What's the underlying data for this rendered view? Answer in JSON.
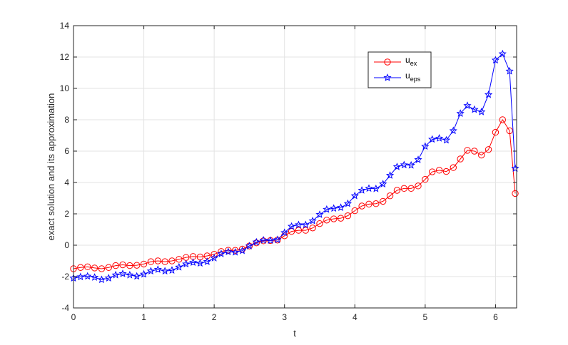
{
  "chart_data": {
    "type": "line",
    "xlabel": "t",
    "ylabel": "exact solution and its approximation",
    "xlim": [
      0,
      6.3
    ],
    "ylim": [
      -4,
      14
    ],
    "xticks": [
      "0",
      "1",
      "2",
      "3",
      "4",
      "5",
      "6"
    ],
    "yticks": [
      "-4",
      "-2",
      "0",
      "2",
      "4",
      "6",
      "8",
      "10",
      "12",
      "14"
    ],
    "grid": true,
    "legend_placement": "top-right",
    "x": [
      0.0,
      0.1,
      0.2,
      0.3,
      0.4,
      0.5,
      0.6,
      0.7,
      0.8,
      0.9,
      1.0,
      1.1,
      1.2,
      1.3,
      1.4,
      1.5,
      1.6,
      1.7,
      1.8,
      1.9,
      2.0,
      2.1,
      2.2,
      2.3,
      2.4,
      2.5,
      2.6,
      2.7,
      2.8,
      2.9,
      3.0,
      3.1,
      3.2,
      3.3,
      3.4,
      3.5,
      3.6,
      3.7,
      3.8,
      3.9,
      4.0,
      4.1,
      4.2,
      4.3,
      4.4,
      4.5,
      4.6,
      4.7,
      4.8,
      4.9,
      5.0,
      5.1,
      5.2,
      5.3,
      5.4,
      5.5,
      5.6,
      5.7,
      5.8,
      5.9,
      6.0,
      6.1,
      6.2,
      6.28
    ],
    "series": [
      {
        "name_base": "u",
        "name_sub": "ex",
        "color": "#ff0000",
        "marker": "circle",
        "values": [
          -1.5,
          -1.42,
          -1.38,
          -1.45,
          -1.5,
          -1.42,
          -1.3,
          -1.25,
          -1.3,
          -1.28,
          -1.2,
          -1.05,
          -1.0,
          -1.05,
          -1.0,
          -0.9,
          -0.78,
          -0.72,
          -0.75,
          -0.68,
          -0.58,
          -0.4,
          -0.32,
          -0.33,
          -0.25,
          -0.05,
          0.15,
          0.28,
          0.3,
          0.33,
          0.6,
          0.88,
          0.95,
          0.95,
          1.1,
          1.38,
          1.6,
          1.68,
          1.72,
          1.88,
          2.2,
          2.5,
          2.62,
          2.65,
          2.8,
          3.15,
          3.5,
          3.62,
          3.62,
          3.78,
          4.2,
          4.68,
          4.78,
          4.7,
          4.95,
          5.5,
          6.05,
          6.0,
          5.75,
          6.1,
          7.2,
          8.0,
          7.3,
          3.3
        ]
      },
      {
        "name_base": "u",
        "name_sub": "eps",
        "color": "#0000ff",
        "marker": "star",
        "values": [
          -2.1,
          -2.02,
          -1.98,
          -2.05,
          -2.2,
          -2.1,
          -1.9,
          -1.82,
          -1.9,
          -1.98,
          -1.85,
          -1.65,
          -1.55,
          -1.65,
          -1.6,
          -1.4,
          -1.2,
          -1.1,
          -1.15,
          -1.05,
          -0.82,
          -0.55,
          -0.42,
          -0.45,
          -0.35,
          -0.05,
          0.2,
          0.32,
          0.3,
          0.35,
          0.8,
          1.2,
          1.3,
          1.3,
          1.55,
          1.95,
          2.28,
          2.35,
          2.4,
          2.65,
          3.15,
          3.5,
          3.62,
          3.6,
          3.9,
          4.45,
          5.0,
          5.12,
          5.1,
          5.45,
          6.3,
          6.75,
          6.82,
          6.7,
          7.3,
          8.4,
          8.9,
          8.65,
          8.5,
          9.6,
          11.8,
          12.2,
          11.1,
          4.9
        ]
      }
    ]
  }
}
